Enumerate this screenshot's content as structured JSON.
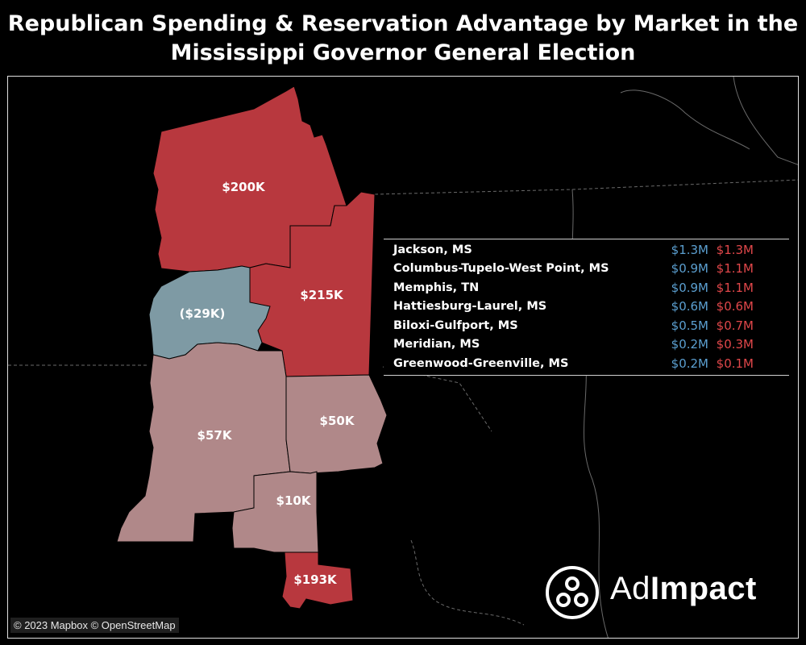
{
  "title": {
    "line1": "Republican Spending & Reservation Advantage by Market in the",
    "line2": "Mississippi Governor General Election"
  },
  "colors": {
    "strong_rep": "#b8383e",
    "lean_rep": "#b08889",
    "dem": "#7e9aa4",
    "dem_text": "#5b9fd0",
    "rep_text": "#e0474a",
    "background": "#000000"
  },
  "map": {
    "markets": [
      {
        "id": "memphis",
        "label": "$200K",
        "color": "strong_rep"
      },
      {
        "id": "columbus-tupelo",
        "label": "$215K",
        "color": "strong_rep"
      },
      {
        "id": "greenwood-greenville",
        "label": "($29K)",
        "color": "dem"
      },
      {
        "id": "jackson",
        "label": "$57K",
        "color": "lean_rep"
      },
      {
        "id": "meridian",
        "label": "$50K",
        "color": "lean_rep"
      },
      {
        "id": "hattiesburg-laurel",
        "label": "$10K",
        "color": "lean_rep"
      },
      {
        "id": "biloxi-gulfport",
        "label": "$193K",
        "color": "strong_rep"
      }
    ]
  },
  "legend": {
    "rows": [
      {
        "market": "Jackson, MS",
        "dem": "$1.3M",
        "rep": "$1.3M"
      },
      {
        "market": "Columbus-Tupelo-West Point, MS",
        "dem": "$0.9M",
        "rep": "$1.1M"
      },
      {
        "market": "Memphis, TN",
        "dem": "$0.9M",
        "rep": "$1.1M"
      },
      {
        "market": "Hattiesburg-Laurel, MS",
        "dem": "$0.6M",
        "rep": "$0.6M"
      },
      {
        "market": "Biloxi-Gulfport, MS",
        "dem": "$0.5M",
        "rep": "$0.7M"
      },
      {
        "market": "Meridian, MS",
        "dem": "$0.2M",
        "rep": "$0.3M"
      },
      {
        "market": "Greenwood-Greenville, MS",
        "dem": "$0.2M",
        "rep": "$0.1M"
      }
    ]
  },
  "logo": {
    "text_light": "Ad",
    "text_bold": "Impact"
  },
  "attribution": "© 2023 Mapbox © OpenStreetMap"
}
